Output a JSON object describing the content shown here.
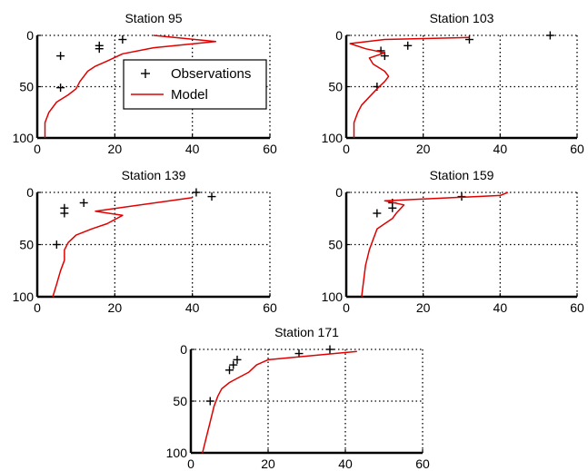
{
  "figure": {
    "legend": {
      "observations_label": "Observations",
      "model_label": "Model"
    },
    "colors": {
      "model": "#e00000",
      "observations": "#000000",
      "axes": "#000000",
      "grid": "#000000"
    }
  },
  "chart_data": [
    {
      "type": "line",
      "title": "Station 95",
      "xlim": [
        0,
        60
      ],
      "ylim": [
        0,
        100
      ],
      "y_reversed": true,
      "xticks": [
        0,
        20,
        40,
        60
      ],
      "yticks": [
        0,
        50,
        100
      ],
      "grid": true,
      "legend": "top-right",
      "series": [
        {
          "name": "Observations",
          "kind": "scatter",
          "marker": "+",
          "x": [
            22,
            16,
            16,
            6,
            6
          ],
          "y": [
            4,
            10,
            13,
            20,
            51
          ]
        },
        {
          "name": "Model",
          "kind": "line",
          "x": [
            30,
            46,
            30,
            22,
            18,
            15,
            13,
            12,
            11,
            10,
            8,
            5,
            3,
            2,
            2
          ],
          "y": [
            0,
            6,
            12,
            18,
            25,
            30,
            35,
            40,
            45,
            52,
            58,
            65,
            75,
            85,
            100
          ]
        }
      ]
    },
    {
      "type": "line",
      "title": "Station 103",
      "xlim": [
        0,
        60
      ],
      "ylim": [
        0,
        100
      ],
      "y_reversed": true,
      "xticks": [
        0,
        20,
        40,
        60
      ],
      "yticks": [
        0,
        50,
        100
      ],
      "grid": true,
      "series": [
        {
          "name": "Observations",
          "kind": "scatter",
          "marker": "+",
          "x": [
            53,
            32,
            16,
            9,
            10,
            8
          ],
          "y": [
            0,
            4,
            10,
            15,
            20,
            50
          ]
        },
        {
          "name": "Model",
          "kind": "line",
          "x": [
            32,
            10,
            1,
            5,
            10,
            6,
            7,
            10,
            11,
            10,
            8,
            6,
            4,
            3,
            2,
            2
          ],
          "y": [
            2,
            4,
            8,
            13,
            17,
            22,
            28,
            35,
            40,
            45,
            52,
            60,
            68,
            75,
            85,
            100
          ]
        }
      ]
    },
    {
      "type": "line",
      "title": "Station 139",
      "xlim": [
        0,
        60
      ],
      "ylim": [
        0,
        100
      ],
      "y_reversed": true,
      "xticks": [
        0,
        20,
        40,
        60
      ],
      "yticks": [
        0,
        50,
        100
      ],
      "grid": true,
      "series": [
        {
          "name": "Observations",
          "kind": "scatter",
          "marker": "+",
          "x": [
            41,
            45,
            12,
            7,
            7,
            5
          ],
          "y": [
            0,
            4,
            10,
            15,
            20,
            50
          ]
        },
        {
          "name": "Model",
          "kind": "line",
          "x": [
            40,
            15,
            22,
            18,
            14,
            12,
            10,
            8,
            7,
            7,
            6,
            5,
            4
          ],
          "y": [
            5,
            18,
            22,
            30,
            35,
            38,
            41,
            48,
            55,
            65,
            75,
            88,
            100
          ]
        }
      ]
    },
    {
      "type": "line",
      "title": "Station 159",
      "xlim": [
        0,
        60
      ],
      "ylim": [
        0,
        100
      ],
      "y_reversed": true,
      "xticks": [
        0,
        20,
        40,
        60
      ],
      "yticks": [
        0,
        50,
        100
      ],
      "grid": true,
      "series": [
        {
          "name": "Observations",
          "kind": "scatter",
          "marker": "+",
          "x": [
            30,
            12,
            12,
            8
          ],
          "y": [
            4,
            10,
            15,
            20
          ]
        },
        {
          "name": "Model",
          "kind": "line",
          "x": [
            42,
            40,
            10,
            15,
            13,
            12,
            10,
            8,
            7,
            6,
            5,
            4
          ],
          "y": [
            0,
            3,
            8,
            12,
            20,
            25,
            30,
            35,
            45,
            55,
            70,
            100
          ]
        }
      ]
    },
    {
      "type": "line",
      "title": "Station 171",
      "xlim": [
        0,
        60
      ],
      "ylim": [
        0,
        100
      ],
      "y_reversed": true,
      "xticks": [
        0,
        20,
        40,
        60
      ],
      "yticks": [
        0,
        50,
        100
      ],
      "grid": true,
      "series": [
        {
          "name": "Observations",
          "kind": "scatter",
          "marker": "+",
          "x": [
            36,
            28,
            12,
            11,
            10,
            5
          ],
          "y": [
            0,
            4,
            10,
            15,
            20,
            50
          ]
        },
        {
          "name": "Model",
          "kind": "line",
          "x": [
            43,
            20,
            17,
            15,
            12,
            10,
            8,
            7,
            6,
            5,
            4,
            3
          ],
          "y": [
            2,
            10,
            15,
            22,
            28,
            32,
            38,
            45,
            55,
            70,
            85,
            100
          ]
        }
      ]
    }
  ]
}
